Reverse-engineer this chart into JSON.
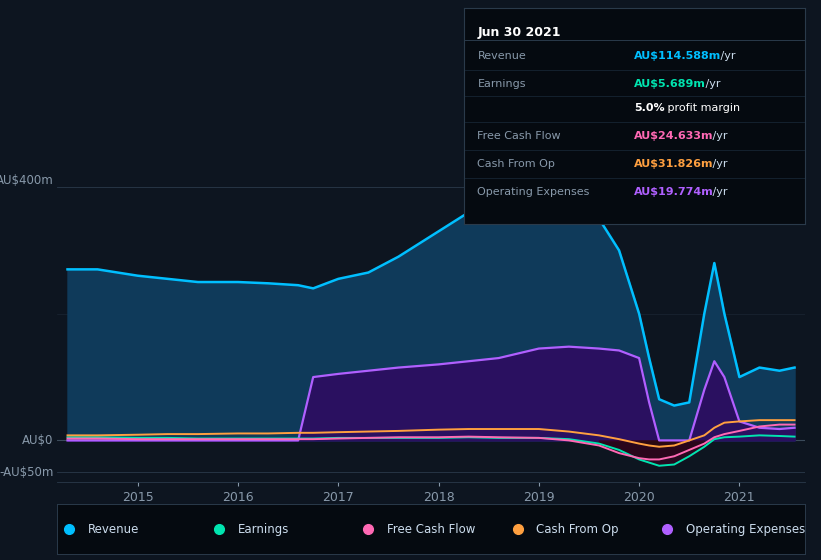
{
  "bg_color": "#0d1520",
  "plot_bg_color": "#0d1520",
  "revenue_color": "#00bfff",
  "earnings_color": "#00e5b0",
  "fcf_color": "#ff69b4",
  "cashfromop_color": "#ffa040",
  "opex_color": "#b060ff",
  "revenue_fill_color": "#0f3a5a",
  "opex_fill_color": "#2a1060",
  "x_ticks": [
    2015,
    2016,
    2017,
    2018,
    2019,
    2020,
    2021
  ],
  "ylabel_top": "AU$400m",
  "ylabel_zero": "AU$0",
  "ylabel_neg": "-AU$50m",
  "info_box": {
    "title": "Jun 30 2021",
    "rows": [
      {
        "label": "Revenue",
        "value": "AU$114.588m",
        "unit": " /yr",
        "color": "#00bfff"
      },
      {
        "label": "Earnings",
        "value": "AU$5.689m",
        "unit": " /yr",
        "color": "#00e5b0"
      },
      {
        "label": "",
        "value": "5.0%",
        "unit": " profit margin",
        "color": "white",
        "bold_value": true
      },
      {
        "label": "Free Cash Flow",
        "value": "AU$24.633m",
        "unit": " /yr",
        "color": "#ff69b4"
      },
      {
        "label": "Cash From Op",
        "value": "AU$31.826m",
        "unit": " /yr",
        "color": "#ffa040"
      },
      {
        "label": "Operating Expenses",
        "value": "AU$19.774m",
        "unit": " /yr",
        "color": "#b060ff"
      }
    ]
  },
  "legend": [
    {
      "label": "Revenue",
      "color": "#00bfff"
    },
    {
      "label": "Earnings",
      "color": "#00e5b0"
    },
    {
      "label": "Free Cash Flow",
      "color": "#ff69b4"
    },
    {
      "label": "Cash From Op",
      "color": "#ffa040"
    },
    {
      "label": "Operating Expenses",
      "color": "#b060ff"
    }
  ],
  "x_data": [
    2014.3,
    2014.6,
    2015.0,
    2015.3,
    2015.6,
    2016.0,
    2016.3,
    2016.6,
    2016.75,
    2017.0,
    2017.3,
    2017.6,
    2018.0,
    2018.3,
    2018.6,
    2019.0,
    2019.3,
    2019.6,
    2019.8,
    2020.0,
    2020.1,
    2020.2,
    2020.35,
    2020.5,
    2020.65,
    2020.75,
    2020.85,
    2021.0,
    2021.2,
    2021.4,
    2021.55
  ],
  "revenue": [
    270,
    270,
    260,
    255,
    250,
    250,
    248,
    245,
    240,
    255,
    265,
    290,
    330,
    360,
    395,
    385,
    370,
    350,
    300,
    200,
    130,
    65,
    55,
    60,
    200,
    280,
    200,
    100,
    115,
    110,
    115
  ],
  "earnings": [
    5,
    5,
    4,
    4,
    3,
    3,
    3,
    3,
    3,
    4,
    4,
    4,
    4,
    5,
    4,
    4,
    2,
    -5,
    -15,
    -30,
    -35,
    -40,
    -38,
    -25,
    -10,
    2,
    5,
    6,
    8,
    7,
    6
  ],
  "fcf": [
    3,
    3,
    2,
    2,
    2,
    2,
    2,
    2,
    2,
    3,
    4,
    5,
    5,
    6,
    5,
    4,
    0,
    -8,
    -20,
    -28,
    -30,
    -30,
    -25,
    -15,
    -5,
    5,
    10,
    15,
    22,
    25,
    25
  ],
  "cashfromop": [
    8,
    8,
    9,
    10,
    10,
    11,
    11,
    12,
    12,
    13,
    14,
    15,
    17,
    18,
    18,
    18,
    14,
    8,
    2,
    -5,
    -8,
    -10,
    -8,
    0,
    8,
    20,
    28,
    30,
    32,
    32,
    32
  ],
  "opex": [
    0,
    0,
    0,
    0,
    0,
    0,
    0,
    0,
    100,
    105,
    110,
    115,
    120,
    125,
    130,
    145,
    148,
    145,
    142,
    130,
    60,
    0,
    0,
    0,
    80,
    125,
    100,
    30,
    20,
    18,
    20
  ]
}
